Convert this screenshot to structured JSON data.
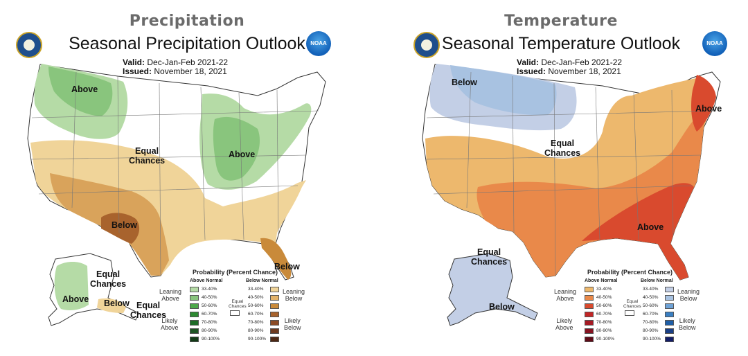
{
  "precip": {
    "section_title": "Precipitation",
    "map_title": "Seasonal Precipitation Outlook",
    "valid_label": "Valid:",
    "valid_value": "Dec-Jan-Feb 2021-22",
    "issued_label": "Issued:",
    "issued_value": "November 18, 2021",
    "labels": {
      "above_nw": "Above",
      "above_gl": "Above",
      "equal": "Equal\nChances",
      "below_tx": "Below",
      "below_fl": "Below",
      "ak_equal": "Equal\nChances",
      "ak_above": "Above",
      "ak_below": "Below",
      "ak_equal2": "Equal\nChances"
    },
    "legend": {
      "title": "Probability (Percent Chance)",
      "above_head": "Above Normal",
      "below_head": "Below Normal",
      "bins": [
        "33-40%",
        "40-50%",
        "50-60%",
        "60-70%",
        "70-80%",
        "80-90%",
        "90-100%"
      ],
      "above_colors": [
        "#b5dba6",
        "#89c57d",
        "#4ea94a",
        "#2d8a32",
        "#1f6b28",
        "#1c5422",
        "#123a16"
      ],
      "below_colors": [
        "#f0d499",
        "#e3b36a",
        "#c98a3a",
        "#a8632d",
        "#8a4b26",
        "#6d3a20",
        "#4d2814"
      ],
      "leaning_above": "Leaning\nAbove",
      "likely_above": "Likely\nAbove",
      "leaning_below": "Leaning\nBelow",
      "likely_below": "Likely\nBelow",
      "equal_chances": "Equal\nChances"
    }
  },
  "temp": {
    "section_title": "Temperature",
    "map_title": "Seasonal Temperature Outlook",
    "valid_label": "Valid:",
    "valid_value": "Dec-Jan-Feb 2021-22",
    "issued_label": "Issued:",
    "issued_value": "November 18, 2021",
    "labels": {
      "below_nw": "Below",
      "equal": "Equal\nChances",
      "above_ne": "Above",
      "above_se": "Above",
      "ak_equal": "Equal\nChances",
      "ak_below": "Below"
    },
    "legend": {
      "title": "Probability (Percent Chance)",
      "above_head": "Above Normal",
      "below_head": "Below Normal",
      "bins": [
        "33-40%",
        "40-50%",
        "50-60%",
        "60-70%",
        "70-80%",
        "80-90%",
        "90-100%"
      ],
      "above_colors": [
        "#edb86d",
        "#e9894a",
        "#d94a2e",
        "#c22626",
        "#a51b24",
        "#861321",
        "#5e0c18"
      ],
      "below_colors": [
        "#c3cfe6",
        "#a8c2e1",
        "#6ea2d6",
        "#3a7fc2",
        "#1f5ea6",
        "#1a3f86",
        "#141e66"
      ],
      "leaning_above": "Leaning\nAbove",
      "likely_above": "Likely\nAbove",
      "leaning_below": "Leaning\nBelow",
      "likely_below": "Likely\nBelow",
      "equal_chances": "Equal\nChances"
    }
  }
}
